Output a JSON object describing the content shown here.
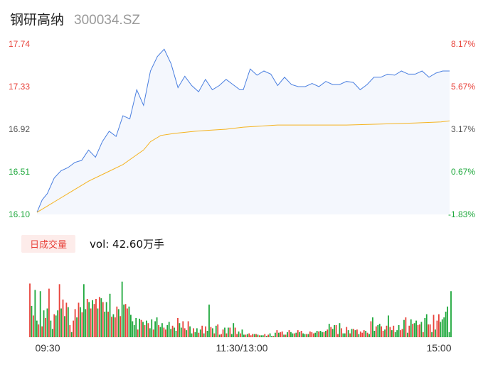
{
  "header": {
    "name": "钢研高纳",
    "code": "300034.SZ"
  },
  "volume_panel": {
    "badge": "日成交量",
    "vol_text": "vol: 42.60万手"
  },
  "colors": {
    "price_line": "#4a7fe0",
    "avg_line": "#f5b320",
    "up": "#e8423a",
    "down": "#1ea83c",
    "area_fill": "#f4f7fd",
    "axis_text": "#555555"
  },
  "chart_data": [
    {
      "type": "line",
      "title": "",
      "series": [],
      "ylim": [
        16.1,
        17.74
      ],
      "y_ticks_left": [
        "17.74",
        "17.33",
        "16.92",
        "16.51",
        "16.10"
      ],
      "y_ticks_right": [
        "8.17%",
        "5.67%",
        "3.17%",
        "0.67%",
        "-1.83%"
      ],
      "price_x": [
        0,
        3,
        6,
        10,
        14,
        18,
        22,
        26,
        30,
        34,
        38,
        42,
        46,
        50,
        54,
        58,
        62,
        66,
        70,
        74,
        78,
        82,
        86,
        90,
        94,
        98,
        102,
        106,
        110,
        114,
        118,
        120,
        124,
        128,
        132,
        136,
        140,
        144,
        148,
        152,
        156,
        160,
        164,
        168,
        172,
        176,
        180,
        184,
        188,
        192,
        196,
        200,
        204,
        208,
        212,
        216,
        220,
        224,
        228,
        232,
        236,
        240
      ],
      "price_y": [
        16.12,
        16.24,
        16.3,
        16.45,
        16.52,
        16.55,
        16.6,
        16.62,
        16.72,
        16.65,
        16.8,
        16.9,
        16.85,
        17.05,
        17.02,
        17.3,
        17.15,
        17.48,
        17.62,
        17.69,
        17.55,
        17.32,
        17.43,
        17.34,
        17.28,
        17.4,
        17.3,
        17.34,
        17.4,
        17.35,
        17.3,
        17.3,
        17.5,
        17.44,
        17.48,
        17.45,
        17.34,
        17.42,
        17.35,
        17.33,
        17.33,
        17.36,
        17.33,
        17.38,
        17.35,
        17.35,
        17.38,
        17.37,
        17.3,
        17.35,
        17.42,
        17.42,
        17.45,
        17.44,
        17.48,
        17.45,
        17.45,
        17.48,
        17.42,
        17.46,
        17.48,
        17.48
      ],
      "avg_x": [
        0,
        6,
        12,
        20,
        30,
        40,
        50,
        56,
        62,
        66,
        72,
        80,
        92,
        100,
        110,
        120,
        130,
        140,
        160,
        180,
        200,
        220,
        235,
        240
      ],
      "avg_y": [
        16.12,
        16.18,
        16.24,
        16.32,
        16.42,
        16.5,
        16.58,
        16.65,
        16.72,
        16.8,
        16.86,
        16.88,
        16.9,
        16.91,
        16.92,
        16.94,
        16.95,
        16.96,
        16.96,
        16.96,
        16.97,
        16.98,
        16.99,
        17.0
      ]
    },
    {
      "type": "bar",
      "title": "",
      "series": [],
      "x_ticks": [
        "09:30",
        "11:30/13:00",
        "15:00"
      ],
      "x_range": [
        0,
        240
      ],
      "volume_up": [
        1,
        0,
        1,
        0,
        0,
        1,
        0,
        1,
        0,
        1,
        0,
        1,
        0,
        0,
        1,
        0,
        0,
        1,
        0,
        1,
        0,
        1,
        0,
        1,
        0,
        1,
        1,
        0,
        1,
        0,
        1,
        0,
        0,
        1,
        0,
        1,
        0,
        1,
        1,
        0,
        1,
        0,
        1,
        0,
        0,
        1,
        0,
        1,
        0,
        1,
        1,
        0,
        1,
        0,
        0,
        1,
        1,
        0,
        0,
        0,
        0,
        0,
        1,
        0,
        1,
        0,
        1,
        0,
        1,
        0,
        0,
        1,
        0,
        0,
        1,
        0,
        0,
        1,
        1,
        0,
        0,
        0,
        1,
        0,
        0,
        1,
        0,
        0,
        1,
        1,
        0,
        1,
        0,
        0,
        1,
        0,
        0,
        1,
        0,
        1,
        0,
        1,
        0,
        0,
        1,
        0,
        1,
        0,
        1,
        0,
        1,
        1,
        0,
        1,
        0,
        1,
        0,
        0,
        1,
        1,
        0,
        1,
        0,
        0,
        1,
        0,
        1,
        1,
        1,
        0,
        1,
        0,
        1,
        0,
        0,
        1,
        0,
        1,
        0,
        0,
        1,
        0,
        1,
        0,
        1,
        1,
        0,
        1,
        0,
        1,
        0,
        0,
        1,
        0,
        1,
        0,
        1,
        0,
        0,
        1,
        0,
        1,
        1,
        1,
        0,
        0,
        1,
        0,
        0,
        1,
        0,
        1,
        0,
        1,
        0,
        0,
        1,
        1,
        0,
        1,
        0,
        0,
        1,
        0,
        1,
        0,
        1,
        0,
        1,
        0,
        1,
        1,
        1,
        0,
        1,
        0,
        1,
        0,
        0,
        1,
        0,
        0,
        1,
        1,
        0,
        1,
        0,
        1,
        0,
        1,
        0,
        0,
        0,
        1,
        1,
        0,
        1,
        0,
        1,
        0,
        1,
        0,
        0,
        1,
        1,
        0,
        1,
        0,
        0,
        1,
        1,
        0,
        1,
        0,
        1,
        1
      ],
      "volume_values": [
        0.84,
        0.49,
        0.34,
        0.74,
        0.26,
        0.2,
        0.72,
        0.17,
        0.42,
        0.3,
        0.45,
        0.76,
        0.26,
        0.13,
        0.36,
        0.34,
        0.42,
        0.83,
        0.45,
        0.59,
        0.33,
        0.54,
        0.47,
        0.19,
        0.08,
        0.26,
        0.44,
        0.31,
        0.54,
        0.47,
        0.39,
        0.83,
        0.44,
        0.6,
        0.55,
        0.45,
        0.58,
        0.52,
        0.6,
        0.45,
        0.63,
        0.61,
        0.55,
        0.4,
        0.55,
        0.4,
        0.68,
        0.32,
        0.36,
        0.31,
        0.48,
        0.44,
        0.33,
        0.87,
        0.51,
        0.52,
        0.45,
        0.48,
        0.35,
        0.25,
        0.19,
        0.3,
        0.12,
        0.29,
        0.27,
        0.24,
        0.19,
        0.26,
        0.22,
        0.14,
        0.28,
        0.12,
        0.25,
        0.31,
        0.19,
        0.16,
        0.22,
        0.15,
        0.12,
        0.19,
        0.24,
        0.13,
        0.18,
        0.15,
        0.1,
        0.3,
        0.22,
        0.15,
        0.25,
        0.14,
        0.11,
        0.25,
        0.17,
        0.06,
        0.14,
        0.08,
        0.14,
        0.07,
        0.12,
        0.18,
        0.06,
        0.17,
        0.1,
        0.51,
        0.16,
        0.14,
        0.06,
        0.18,
        0.2,
        0.04,
        0.05,
        0.12,
        0.15,
        0.06,
        0.15,
        0.15,
        0.05,
        0.22,
        0.15,
        0.05,
        0.09,
        0.06,
        0.12,
        0.04,
        0.04,
        0.05,
        0.06,
        0.03,
        0.05,
        0.05,
        0.05,
        0.04,
        0.03,
        0.03,
        0.03,
        0.05,
        0.02,
        0.04,
        0.06,
        0.02,
        0.02,
        0.07,
        0.11,
        0.07,
        0.08,
        0.09,
        0.04,
        0.04,
        0.08,
        0.11,
        0.08,
        0.06,
        0.06,
        0.07,
        0.11,
        0.08,
        0.1,
        0.06,
        0.05,
        0.05,
        0.05,
        0.09,
        0.08,
        0.06,
        0.07,
        0.1,
        0.09,
        0.1,
        0.08,
        0.08,
        0.1,
        0.12,
        0.21,
        0.16,
        0.13,
        0.19,
        0.19,
        0.05,
        0.22,
        0.14,
        0.06,
        0.06,
        0.16,
        0.11,
        0.06,
        0.13,
        0.13,
        0.11,
        0.12,
        0.05,
        0.09,
        0.07,
        0.11,
        0.1,
        0.07,
        0.05,
        0.25,
        0.31,
        0.1,
        0.17,
        0.19,
        0.21,
        0.17,
        0.1,
        0.12,
        0.18,
        0.34,
        0.16,
        0.11,
        0.18,
        0.08,
        0.11,
        0.19,
        0.11,
        0.13,
        0.27,
        0.31,
        0.07,
        0.18,
        0.28,
        0.21,
        0.22,
        0.26,
        0.19,
        0.2,
        0.24,
        0.08,
        0.3,
        0.36,
        0.2,
        0.2,
        0.08,
        0.35,
        0.12,
        0.26,
        0.36,
        0.24,
        0.28,
        0.31,
        0.4,
        0.48,
        0.08,
        0.72
      ]
    }
  ]
}
